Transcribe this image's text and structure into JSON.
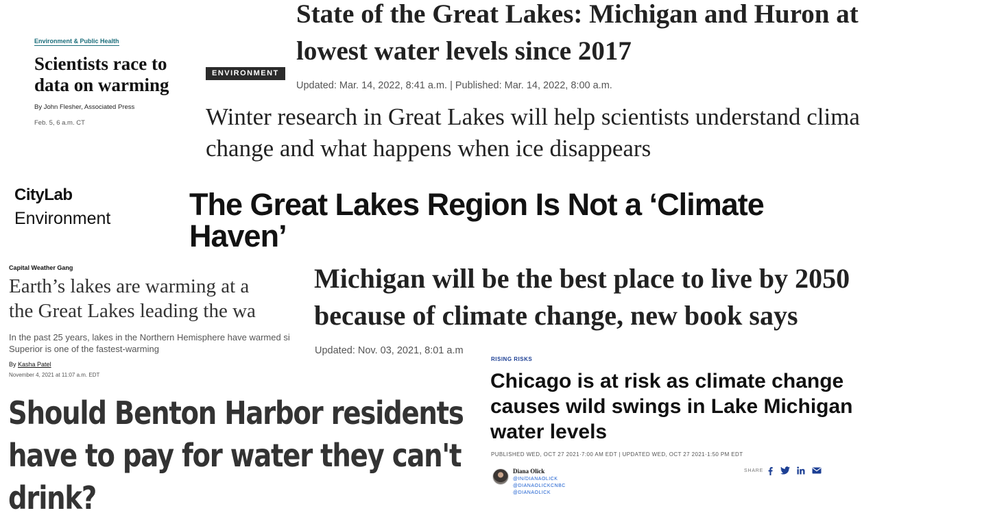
{
  "clip1": {
    "kicker": "Environment & Public Health",
    "title": "Scientists race to data on warming",
    "title_lines": [
      "Scientists race to",
      "data on warming"
    ],
    "byline": "By John Flesher, Associated Press",
    "date": "Feb. 5, 6 a.m. CT"
  },
  "clip2": {
    "section_badge": "ENVIRONMENT",
    "title": "State of the Great Lakes: Michigan and Huron at lowest water levels since 2017",
    "title_lines": [
      "State of the Great Lakes: Michigan and Huron at",
      "lowest water levels since 2017"
    ],
    "meta": "Updated: Mar. 14, 2022, 8:41 a.m. | Published: Mar. 14, 2022, 8:00 a.m.",
    "dek": "Winter research in Great Lakes will help scientists understand clima change and what happens when ice disappears",
    "dek_lines": [
      "Winter research in Great Lakes will help scientists understand clima",
      "change and what happens when ice disappears"
    ]
  },
  "clip3": {
    "brand": "CityLab",
    "section": "Environment",
    "title": "The Great Lakes Region Is Not a ‘Climate Haven’",
    "title_lines": [
      "The Great Lakes Region Is Not a ‘Climate",
      "Haven’"
    ]
  },
  "clip4": {
    "kicker": "Capital Weather Gang",
    "title": "Earth’s lakes are warming at a the Great Lakes leading the wa",
    "title_lines": [
      "Earth’s lakes are warming at a",
      "the Great Lakes leading the wa"
    ],
    "dek": "In the past 25 years, lakes in the Northern Hemisphere have warmed si Superior is one of the fastest-warming",
    "dek_lines": [
      "In the past 25 years, lakes in the Northern Hemisphere have warmed si",
      "Superior is one of the fastest-warming"
    ],
    "byline_prefix": "By",
    "author": "Kasha Patel",
    "date": "November 4, 2021 at 11:07 a.m. EDT"
  },
  "clip5": {
    "title": "Michigan will be the best place to live by 2050 because of climate change, new book says",
    "title_lines": [
      "Michigan will be the best place to live by 2050",
      "because of climate change, new book says"
    ],
    "meta": "Updated: Nov. 03, 2021, 8:01 a.m"
  },
  "clip6": {
    "title": "Should Benton Harbor residents have to pay for water they can't drink?",
    "title_lines": [
      "Should Benton Harbor residents",
      "have to pay for water they can't",
      "drink?"
    ]
  },
  "clip7": {
    "kicker": "RISING RISKS",
    "title": "Chicago is at risk as climate change causes wild swings in Lake Michigan water levels",
    "title_lines": [
      "Chicago is at risk as climate change",
      "causes wild swings in Lake Michigan",
      "water levels"
    ],
    "meta": "PUBLISHED WED, OCT 27 2021·7:00 AM EDT | UPDATED WED, OCT 27 2021·1:50 PM EDT",
    "author": "Diana Olick",
    "handles": [
      "@IN/DIANAOLICK",
      "@DIANAOLICKCNBC",
      "@DIANAOLICK"
    ],
    "share_label": "SHARE",
    "share_icons": [
      "facebook-icon",
      "twitter-icon",
      "linkedin-icon",
      "email-icon"
    ],
    "share_color": "#1c3f94"
  }
}
